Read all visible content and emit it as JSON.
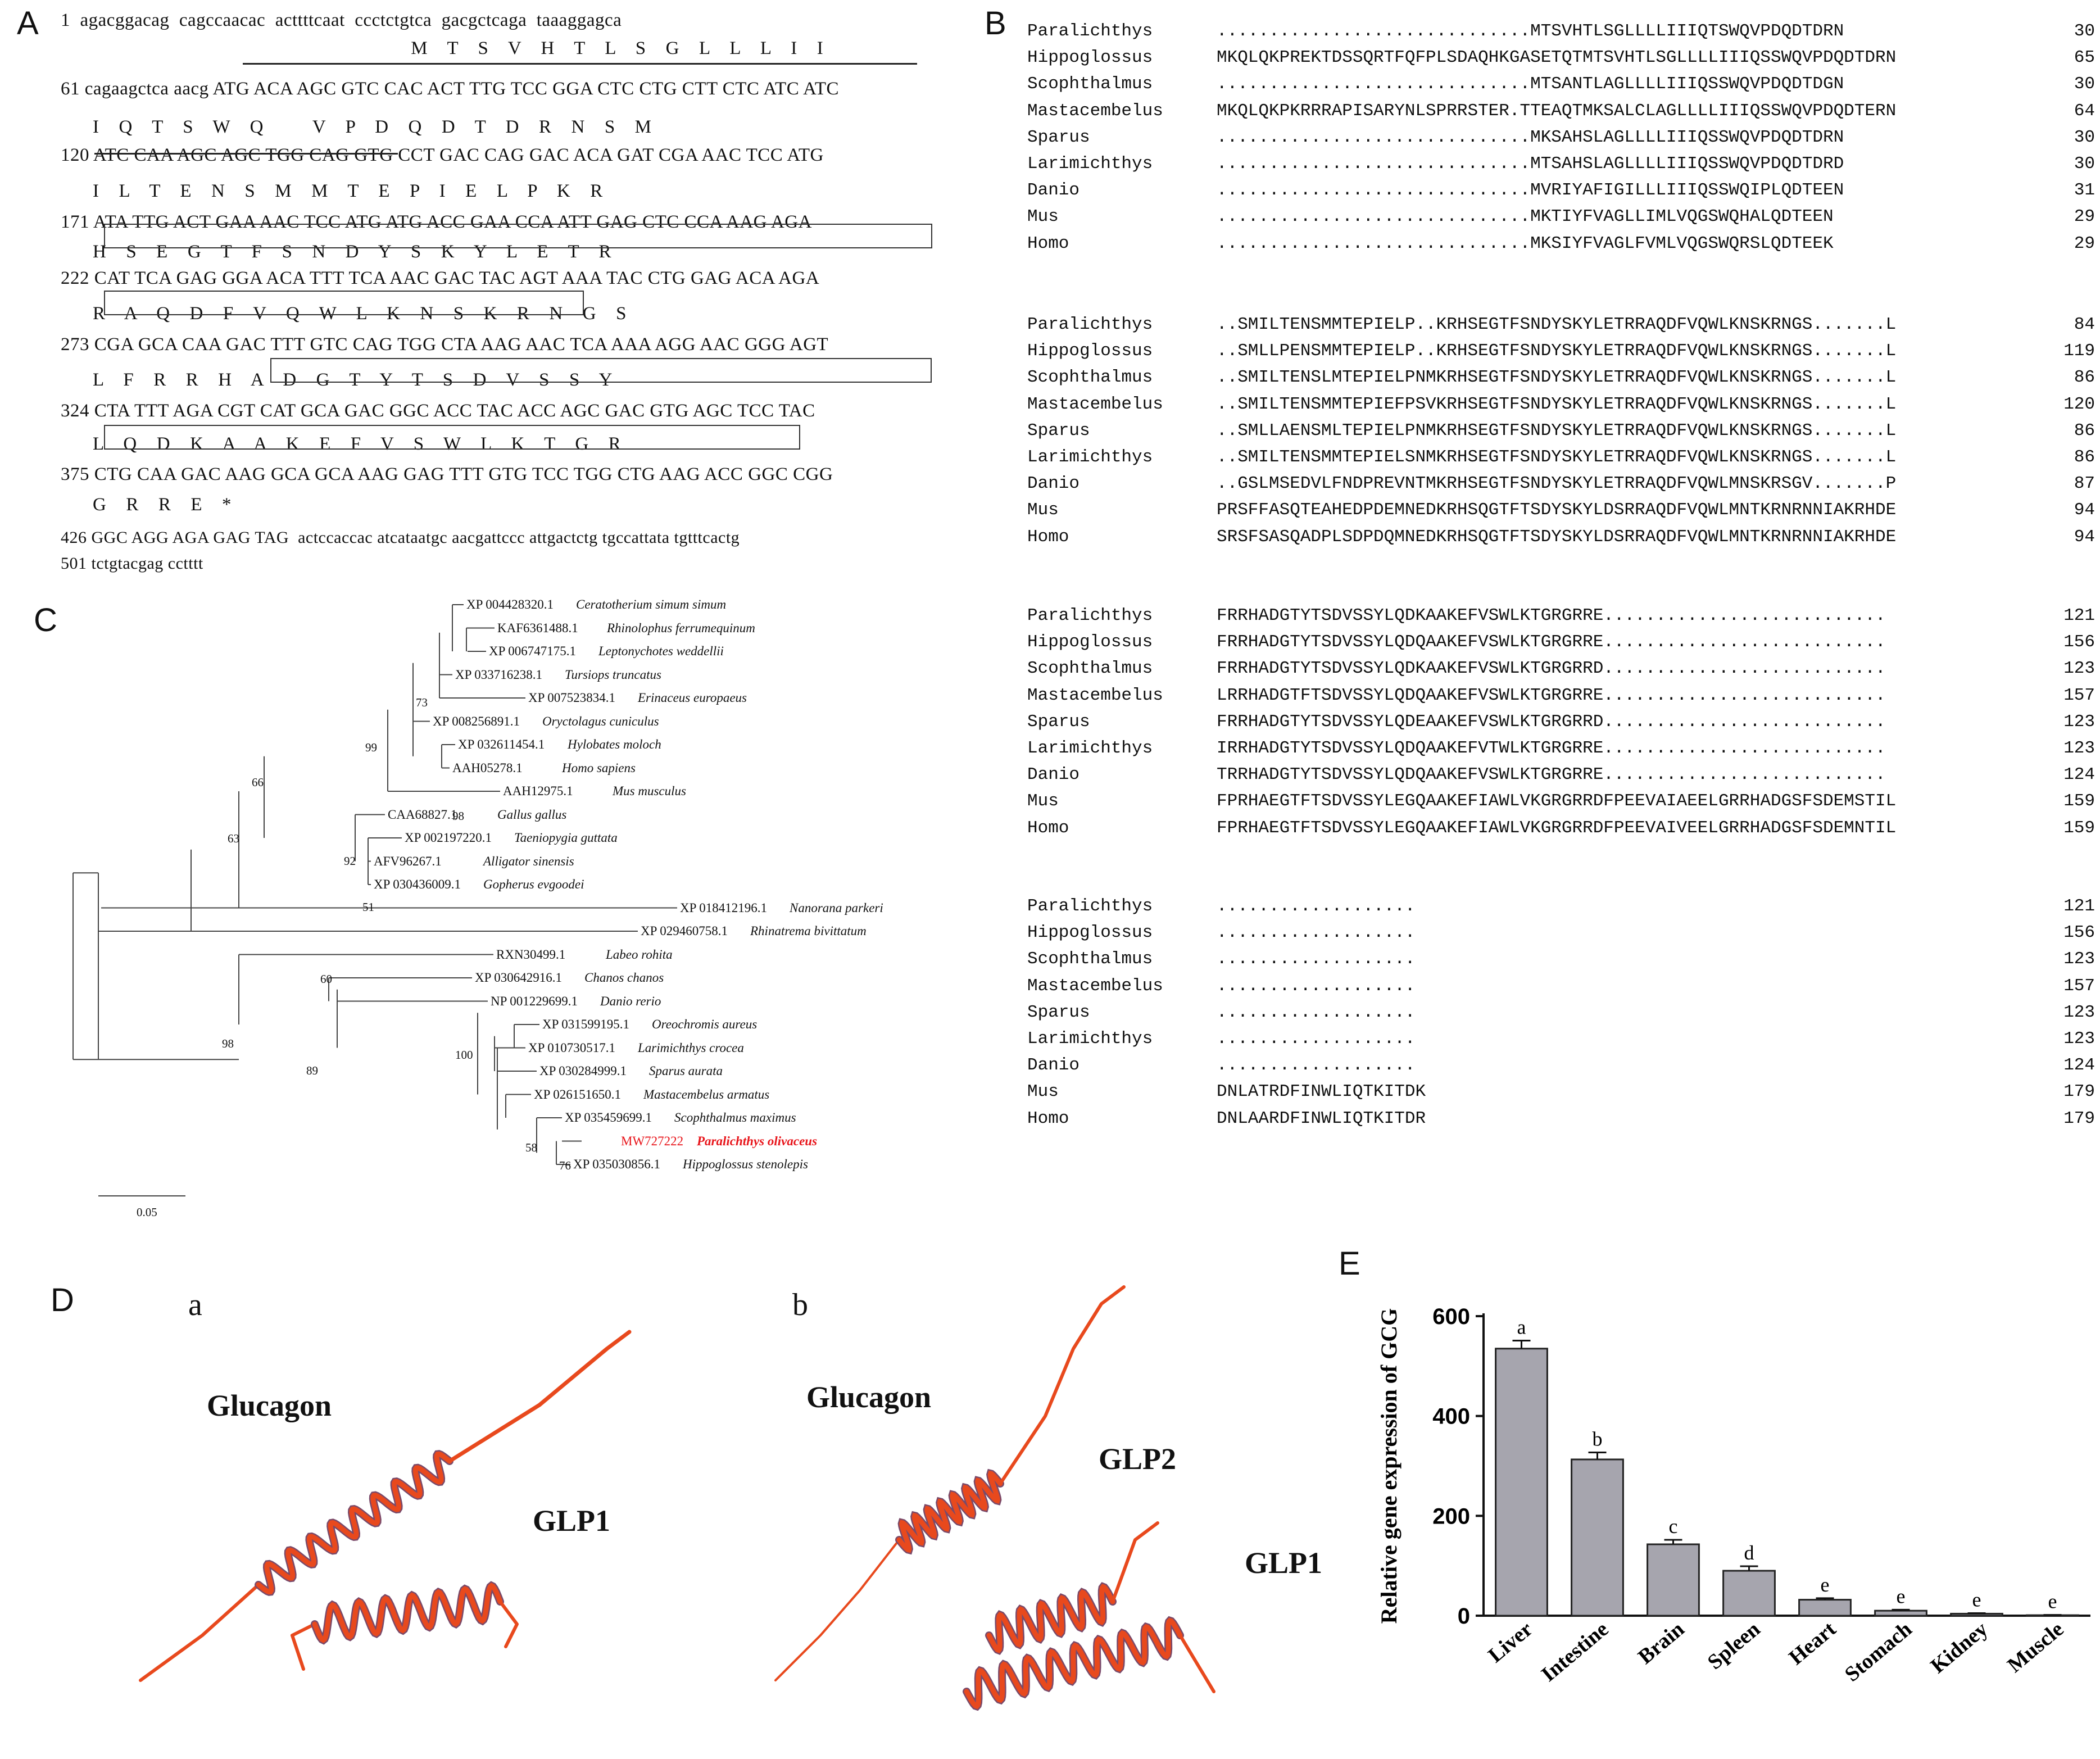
{
  "panelA": {
    "letter": "A",
    "lines": [
      "1  agacggacag  cagccaacac  acttttcaat  ccctctgtca  gacgctcaga  taaaggagca",
      "                                       M    T    S    V    H    T    L    S    G    L    L    L    I    I",
      "61 cagaagctca aacg ATG ACA AGC GTC CAC ACT TTG TCC GGA CTC CTG CTT CTC ATC ATC",
      "    I    Q    T    S    W    Q          V    P    D    Q    D    T    D    R    N    S    M",
      "120 ATC CAA AGC AGC TGG CAG GTG CCT GAC CAG GAC ACA GAT CGA AAC TCC ATG",
      "    I    L    T    E    N    S    M    M    T    E    P    I    E    L    P    K    R",
      "171 ATA TTG ACT GAA AAC TCC ATG ATG ACC GAA CCA ATT GAG CTC CCA AAG AGA",
      "    H    S    E    G    T    F    S    N    D    Y    S    K    Y    L    E    T    R",
      "222 CAT TCA GAG GGA ACA TTT TCA AAC GAC TAC AGT AAA TAC CTG GAG ACA AGA",
      "    R    A    Q    D    F    V    Q    W    L    K    N    S    K    R    N    G    S",
      "273 CGA GCA CAA GAC TTT GTC CAG TGG CTA AAG AAC TCA AAA AGG AAC GGG AGT",
      "    L    F    R    R    H    A    D    G    T    Y    T    S    D    V    S    S    Y",
      "324 CTA TTT AGA CGT CAT GCA GAC GGC ACC TAC ACC AGC GAC GTG AGC TCC TAC",
      "    L    Q    D    K    A    A    K    E    F    V    S    W    L    K    T    G    R",
      "375 CTG CAA GAC AAG GCA GCA AAG GAG TTT GTG TCC TGG CTG AAG ACC GGC CGG",
      "    G    R    R    E    *",
      "426 GGC AGG AGA GAG TAG  actccaccac atcataatgc aacgattccc attgactctg tgccattata tgtttcactg",
      "501 tctgtacgag cctttt"
    ]
  },
  "panelB": {
    "letter": "B",
    "blocks": [
      {
        "rows": [
          {
            "name": "Paralichthys",
            "seq": "..............................MTSVHTLSGLLLLIIIQTSWQVPDQDTDRN",
            "num": "30"
          },
          {
            "name": "Hippoglossus",
            "seq": "MKQLQKPREKTDSSQRTFQFPLSDAQHKGASETQTMTSVHTLSGLLLLIIIQSSWQVPDQDTDRN",
            "num": "65"
          },
          {
            "name": "Scophthalmus",
            "seq": "..............................MTSANTLAGLLLLIIIQSSWQVPDQDTDGN",
            "num": "30"
          },
          {
            "name": "Mastacembelus",
            "seq": "MKQLQKPKRRRAPISARYNLSPRRSTER.TTEAQTMKSALCLAGLLLLIIIQSSWQVPDQDTERN",
            "num": "64"
          },
          {
            "name": "Sparus",
            "seq": "..............................MKSAHSLAGLLLLIIIQSSWQVPDQDTDRN",
            "num": "30"
          },
          {
            "name": "Larimichthys",
            "seq": "..............................MTSAHSLAGLLLLIIIQSSWQVPDQDTDRD",
            "num": "30"
          },
          {
            "name": "Danio",
            "seq": "..............................MVRIYAFIGILLLIIIQSSWQIPLQDTEEN",
            "num": "31"
          },
          {
            "name": "Mus",
            "seq": "..............................MKTIYFVAGLLIMLVQGSWQHALQDTEEN",
            "num": "29"
          },
          {
            "name": "Homo",
            "seq": "..............................MKSIYFVAGLFVMLVQGSWQRSLQDTEEK",
            "num": "29"
          }
        ]
      },
      {
        "rows": [
          {
            "name": "Paralichthys",
            "seq": "..SMILTENSMMTEPIELP..KRHSEGTFSNDYSKYLETRRAQDFVQWLKNSKRNGS.......L",
            "num": "84"
          },
          {
            "name": "Hippoglossus",
            "seq": "..SMLLPENSMMTEPIELP..KRHSEGTFSNDYSKYLETRRAQDFVQWLKNSKRNGS.......L",
            "num": "119"
          },
          {
            "name": "Scophthalmus",
            "seq": "..SMILTENSLMTEPIELPNMKRHSEGTFSNDYSKYLETRRAQDFVQWLKNSKRNGS.......L",
            "num": "86"
          },
          {
            "name": "Mastacembelus",
            "seq": "..SMILTENSMMTEPIEFPSVKRHSEGTFSNDYSKYLETRRAQDFVQWLKNSKRNGS.......L",
            "num": "120"
          },
          {
            "name": "Sparus",
            "seq": "..SMLLAENSMLTEPIELPNMKRHSEGTFSNDYSKYLETRRAQDFVQWLKNSKRNGS.......L",
            "num": "86"
          },
          {
            "name": "Larimichthys",
            "seq": "..SMILTENSMMTEPIELSNMKRHSEGTFSNDYSKYLETRRAQDFVQWLKNSKRNGS.......L",
            "num": "86"
          },
          {
            "name": "Danio",
            "seq": "..GSLMSEDVLFNDPREVNTMKRHSEGTFSNDYSKYLETRRAQDFVQWLMNSKRSGV.......P",
            "num": "87"
          },
          {
            "name": "Mus",
            "seq": "PRSFFASQTEAHEDPDEMNEDKRHSQGTFTSDYSKYLDSRRAQDFVQWLMNTKRNRNNIAKRHDE",
            "num": "94"
          },
          {
            "name": "Homo",
            "seq": "SRSFSASQADPLSDPDQMNEDKRHSQGTFTSDYSKYLDSRRAQDFVQWLMNTKRNRNNIAKRHDE",
            "num": "94"
          }
        ]
      },
      {
        "rows": [
          {
            "name": "Paralichthys",
            "seq": "FRRHADGTYTSDVSSYLQDKAAKEFVSWLKTGRGRRE...........................",
            "num": "121"
          },
          {
            "name": "Hippoglossus",
            "seq": "FRRHADGTYTSDVSSYLQDQAAKEFVSWLKTGRGRRE...........................",
            "num": "156"
          },
          {
            "name": "Scophthalmus",
            "seq": "FRRHADGTYTSDVSSYLQDKAAKEFVSWLKTGRGRRD...........................",
            "num": "123"
          },
          {
            "name": "Mastacembelus",
            "seq": "LRRHADGTFTSDVSSYLQDQAAKEFVSWLKTGRGRRE...........................",
            "num": "157"
          },
          {
            "name": "Sparus",
            "seq": "FRRHADGTYTSDVSSYLQDEAAKEFVSWLKTGRGRRD...........................",
            "num": "123"
          },
          {
            "name": "Larimichthys",
            "seq": "IRRHADGTYTSDVSSYLQDQAAKEFVTWLKTGRGRRE...........................",
            "num": "123"
          },
          {
            "name": "Danio",
            "seq": "TRRHADGTYTSDVSSYLQDQAAKEFVSWLKTGRGRRE...........................",
            "num": "124"
          },
          {
            "name": "Mus",
            "seq": "FPRHAEGTFTSDVSSYLEGQAAKEFIAWLVKGRGRRDFPEEVAIAEELGRRHADGSFSDEMSTIL",
            "num": "159"
          },
          {
            "name": "Homo",
            "seq": "FPRHAEGTFTSDVSSYLEGQAAKEFIAWLVKGRGRRDFPEEVAIVEELGRRHADGSFSDEMNTIL",
            "num": "159"
          }
        ]
      },
      {
        "rows": [
          {
            "name": "Paralichthys",
            "seq": "...................",
            "num": "121"
          },
          {
            "name": "Hippoglossus",
            "seq": "...................",
            "num": "156"
          },
          {
            "name": "Scophthalmus",
            "seq": "...................",
            "num": "123"
          },
          {
            "name": "Mastacembelus",
            "seq": "...................",
            "num": "157"
          },
          {
            "name": "Sparus",
            "seq": "...................",
            "num": "123"
          },
          {
            "name": "Larimichthys",
            "seq": "...................",
            "num": "123"
          },
          {
            "name": "Danio",
            "seq": "...................",
            "num": "124"
          },
          {
            "name": "Mus",
            "seq": "DNLATRDFINWLIQTKITDK",
            "num": "179"
          },
          {
            "name": "Homo",
            "seq": "DNLAARDFINWLIQTKITDR",
            "num": "179"
          }
        ]
      }
    ]
  },
  "panelC": {
    "letter": "C",
    "taxa": [
      {
        "acc": "XP 004428320.1",
        "species": "Ceratotherium simum simum"
      },
      {
        "acc": "KAF6361488.1",
        "species": "Rhinolophus ferrumequinum"
      },
      {
        "acc": "XP 006747175.1",
        "species": "Leptonychotes weddellii"
      },
      {
        "acc": "XP 033716238.1",
        "species": "Tursiops truncatus"
      },
      {
        "acc": "XP 007523834.1",
        "species": "Erinaceus europaeus"
      },
      {
        "acc": "XP 008256891.1",
        "species": "Oryctolagus cuniculus"
      },
      {
        "acc": "XP 032611454.1",
        "species": "Hylobates moloch"
      },
      {
        "acc": "AAH05278.1",
        "species": "Homo sapiens"
      },
      {
        "acc": "AAH12975.1",
        "species": "Mus musculus"
      },
      {
        "acc": "CAA68827.1",
        "species": "Gallus gallus"
      },
      {
        "acc": "XP 002197220.1",
        "species": "Taeniopygia guttata"
      },
      {
        "acc": "AFV96267.1",
        "species": "Alligator sinensis"
      },
      {
        "acc": "XP 030436009.1",
        "species": "Gopherus evgoodei"
      },
      {
        "acc": "XP 018412196.1",
        "species": "Nanorana parkeri"
      },
      {
        "acc": "XP 029460758.1",
        "species": "Rhinatrema bivittatum"
      },
      {
        "acc": "RXN30499.1",
        "species": "Labeo rohita"
      },
      {
        "acc": "XP 030642916.1",
        "species": "Chanos chanos"
      },
      {
        "acc": "NP 001229699.1",
        "species": "Danio rerio"
      },
      {
        "acc": "XP 031599195.1",
        "species": "Oreochromis aureus"
      },
      {
        "acc": "XP 010730517.1",
        "species": "Larimichthys crocea"
      },
      {
        "acc": "XP 030284999.1",
        "species": "Sparus aurata"
      },
      {
        "acc": "XP 026151650.1",
        "species": "Mastacembelus armatus"
      },
      {
        "acc": "XP 035459699.1",
        "species": "Scophthalmus maximus"
      },
      {
        "acc": "MW727222",
        "species": "Paralichthys olivaceus"
      },
      {
        "acc": "XP 035030856.1",
        "species": "Hippoglossus stenolepis"
      }
    ],
    "bootstraps": [
      "73",
      "99",
      "98",
      "66",
      "63",
      "92",
      "51",
      "60",
      "98",
      "89",
      "100",
      "58",
      "76"
    ],
    "scale": "0.05",
    "highlight_color": "#e8151b"
  },
  "panelD": {
    "letter": "D",
    "sub_a": "a",
    "sub_b": "b",
    "glucagon": "Glucagon",
    "glp1": "GLP1",
    "glp2": "GLP2",
    "helix_color": "#e8491d",
    "helix_shade": "#7a4a6a"
  },
  "panelE": {
    "letter": "E",
    "chart_data": {
      "type": "bar",
      "categories": [
        "Liver",
        "Intestine",
        "Brain",
        "Spleen",
        "Heart",
        "Stomach",
        "Kidney",
        "Muscle"
      ],
      "values": [
        535,
        313,
        143,
        90,
        32,
        10,
        4,
        1
      ],
      "errors": [
        16,
        14,
        9,
        9,
        3,
        2,
        1,
        0.5
      ],
      "letters": [
        "a",
        "b",
        "c",
        "d",
        "e",
        "e",
        "e",
        "e"
      ],
      "ylabel": "Relative gene expression of GCG",
      "ylim": [
        0,
        600
      ],
      "yticks": [
        "0",
        "200",
        "400",
        "600"
      ],
      "bar_color": "#a6a5ae"
    }
  }
}
